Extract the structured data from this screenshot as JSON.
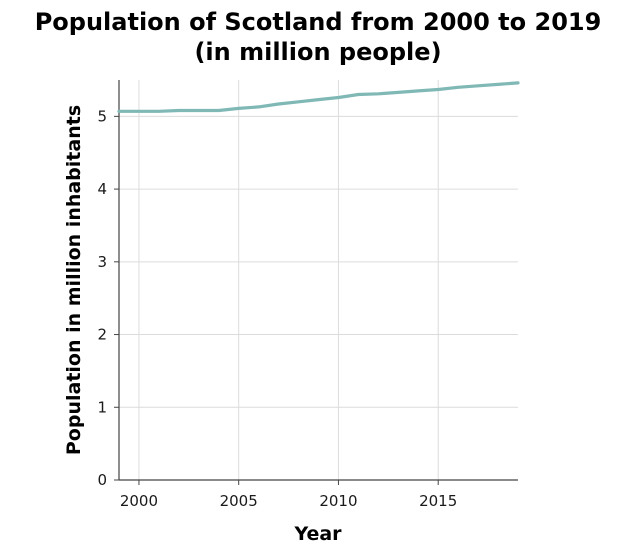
{
  "chart_data": {
    "type": "line",
    "title_lines": [
      "Population of Scotland from 2000 to 2019",
      "(in million people)"
    ],
    "xlabel": "Year",
    "ylabel": "Population in million inhabitants",
    "xlim": [
      1999,
      2019
    ],
    "ylim": [
      0,
      5.5
    ],
    "x_ticks": [
      2000,
      2005,
      2010,
      2015
    ],
    "y_ticks": [
      0,
      1,
      2,
      3,
      4,
      5
    ],
    "grid": true,
    "series": [
      {
        "color": "#7fb8b5",
        "x": [
          1999,
          2000,
          2001,
          2002,
          2003,
          2004,
          2005,
          2006,
          2007,
          2008,
          2009,
          2010,
          2011,
          2012,
          2013,
          2014,
          2015,
          2016,
          2017,
          2018,
          2019
        ],
        "y": [
          5.07,
          5.07,
          5.07,
          5.08,
          5.08,
          5.08,
          5.11,
          5.13,
          5.17,
          5.2,
          5.23,
          5.26,
          5.3,
          5.31,
          5.33,
          5.35,
          5.37,
          5.4,
          5.42,
          5.44,
          5.46
        ]
      }
    ]
  }
}
